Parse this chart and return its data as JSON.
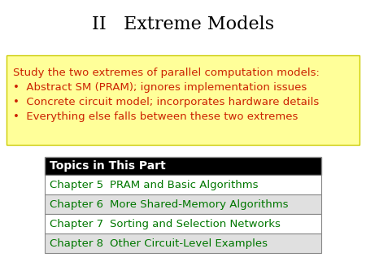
{
  "title": "II   Extreme Models",
  "title_color": "#000000",
  "title_fontsize": 16,
  "background_color": "#ffffff",
  "yellow_box": {
    "line0": "Study the two extremes of parallel computation models:",
    "line1": "•  Abstract SM (PRAM); ignores implementation issues",
    "line2": "•  Concrete circuit model; incorporates hardware details",
    "line3": "•  Everything else falls between these two extremes",
    "bg_color": "#ffff99",
    "border_color": "#cccc00",
    "text_color": "#cc2200",
    "fontsize": 9.5
  },
  "table_header": "Topics in This Part",
  "table_header_bg": "#000000",
  "table_header_text_color": "#ffffff",
  "table_header_fontsize": 10,
  "table_rows": [
    [
      "Chapter 5",
      "PRAM and Basic Algorithms"
    ],
    [
      "Chapter 6",
      "More Shared-Memory Algorithms"
    ],
    [
      "Chapter 7",
      "Sorting and Selection Networks"
    ],
    [
      "Chapter 8",
      "Other Circuit-Level Examples"
    ]
  ],
  "table_row_bg_odd": "#ffffff",
  "table_row_bg_even": "#e0e0e0",
  "table_border_color": "#888888",
  "table_text_color": "#007700",
  "table_fontsize": 9.5
}
